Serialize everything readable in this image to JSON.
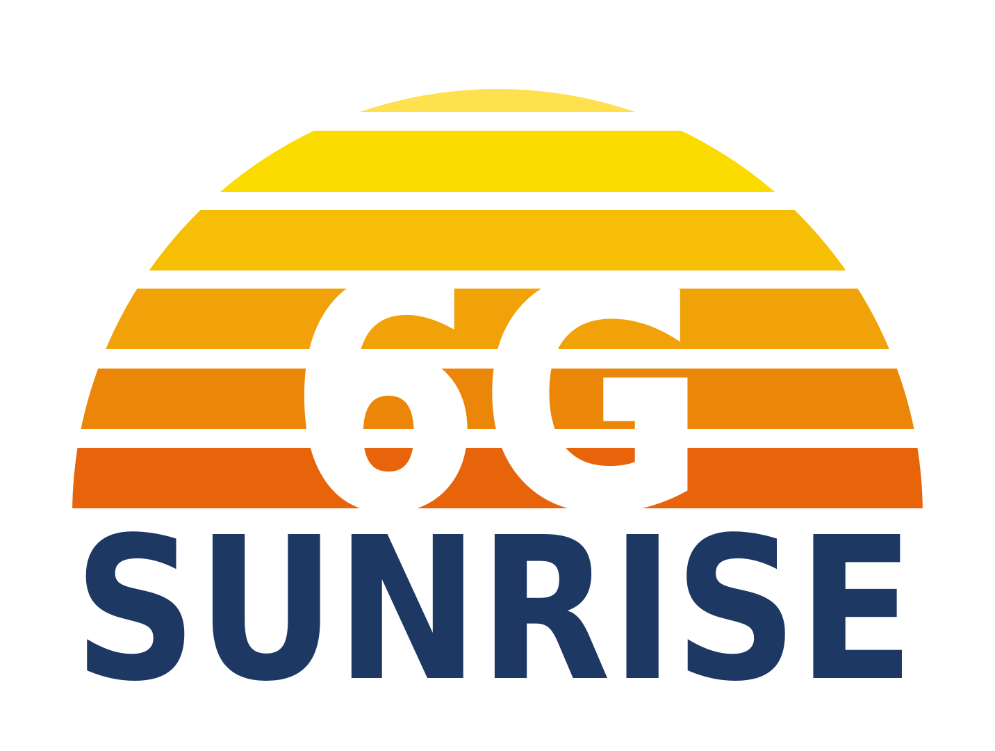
{
  "logo": {
    "emblem_text": "6G",
    "wordmark": "SUNRISE"
  },
  "colors": {
    "background": "#ffffff",
    "wordmark": "#1e3864",
    "emblem_text": "#ffffff",
    "sun_stripes": [
      "#ffe04f",
      "#fbdb00",
      "#f6be04",
      "#f1a208",
      "#ec8608",
      "#e7640a"
    ]
  }
}
